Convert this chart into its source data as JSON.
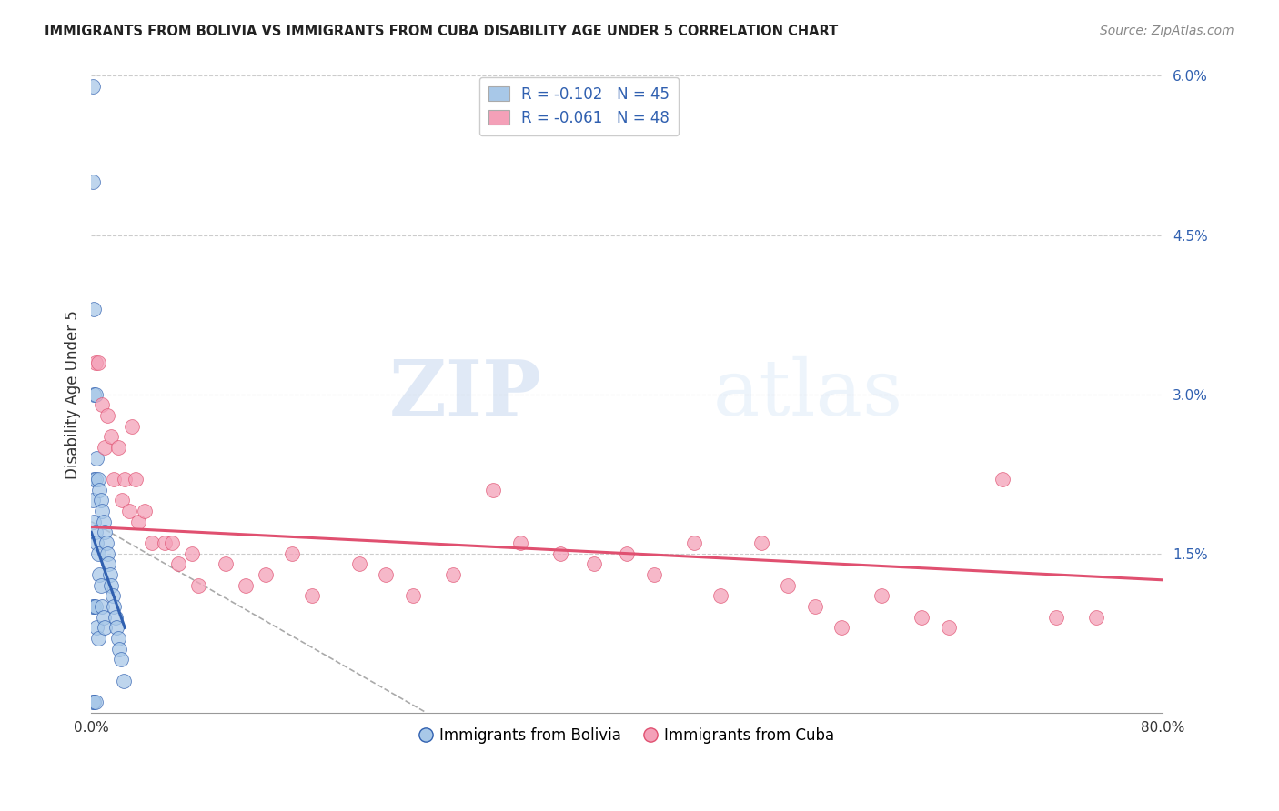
{
  "title": "IMMIGRANTS FROM BOLIVIA VS IMMIGRANTS FROM CUBA DISABILITY AGE UNDER 5 CORRELATION CHART",
  "source": "Source: ZipAtlas.com",
  "ylabel": "Disability Age Under 5",
  "xlim": [
    0,
    0.8
  ],
  "ylim": [
    0,
    0.06
  ],
  "yticks": [
    0,
    0.015,
    0.03,
    0.045,
    0.06
  ],
  "ytick_labels": [
    "",
    "1.5%",
    "3.0%",
    "4.5%",
    "6.0%"
  ],
  "xticks": [
    0,
    0.2,
    0.4,
    0.6,
    0.8
  ],
  "xtick_labels": [
    "0.0%",
    "",
    "",
    "",
    "80.0%"
  ],
  "bolivia_R": -0.102,
  "bolivia_N": 45,
  "cuba_R": -0.061,
  "cuba_N": 48,
  "bolivia_color": "#a8c8e8",
  "cuba_color": "#f4a0b8",
  "bolivia_line_color": "#3060b0",
  "cuba_line_color": "#e05070",
  "bolivia_x": [
    0.001,
    0.001,
    0.001,
    0.001,
    0.001,
    0.002,
    0.002,
    0.002,
    0.002,
    0.002,
    0.002,
    0.003,
    0.003,
    0.003,
    0.003,
    0.003,
    0.004,
    0.004,
    0.004,
    0.005,
    0.005,
    0.005,
    0.006,
    0.006,
    0.007,
    0.007,
    0.008,
    0.008,
    0.009,
    0.009,
    0.01,
    0.01,
    0.011,
    0.012,
    0.013,
    0.014,
    0.015,
    0.016,
    0.017,
    0.018,
    0.019,
    0.02,
    0.021,
    0.022,
    0.024
  ],
  "bolivia_y": [
    0.059,
    0.05,
    0.02,
    0.01,
    0.001,
    0.038,
    0.03,
    0.022,
    0.018,
    0.01,
    0.001,
    0.03,
    0.022,
    0.017,
    0.01,
    0.001,
    0.024,
    0.016,
    0.008,
    0.022,
    0.015,
    0.007,
    0.021,
    0.013,
    0.02,
    0.012,
    0.019,
    0.01,
    0.018,
    0.009,
    0.017,
    0.008,
    0.016,
    0.015,
    0.014,
    0.013,
    0.012,
    0.011,
    0.01,
    0.009,
    0.008,
    0.007,
    0.006,
    0.005,
    0.003
  ],
  "cuba_x": [
    0.003,
    0.005,
    0.008,
    0.01,
    0.012,
    0.015,
    0.017,
    0.02,
    0.023,
    0.025,
    0.028,
    0.03,
    0.033,
    0.035,
    0.04,
    0.045,
    0.055,
    0.06,
    0.065,
    0.075,
    0.08,
    0.1,
    0.115,
    0.13,
    0.15,
    0.165,
    0.2,
    0.22,
    0.24,
    0.27,
    0.3,
    0.32,
    0.35,
    0.375,
    0.4,
    0.42,
    0.45,
    0.47,
    0.5,
    0.52,
    0.54,
    0.56,
    0.59,
    0.62,
    0.64,
    0.68,
    0.72,
    0.75
  ],
  "cuba_y": [
    0.033,
    0.033,
    0.029,
    0.025,
    0.028,
    0.026,
    0.022,
    0.025,
    0.02,
    0.022,
    0.019,
    0.027,
    0.022,
    0.018,
    0.019,
    0.016,
    0.016,
    0.016,
    0.014,
    0.015,
    0.012,
    0.014,
    0.012,
    0.013,
    0.015,
    0.011,
    0.014,
    0.013,
    0.011,
    0.013,
    0.021,
    0.016,
    0.015,
    0.014,
    0.015,
    0.013,
    0.016,
    0.011,
    0.016,
    0.012,
    0.01,
    0.008,
    0.011,
    0.009,
    0.008,
    0.022,
    0.009,
    0.009
  ],
  "watermark_zip": "ZIP",
  "watermark_atlas": "atlas",
  "legend_bolivia": "Immigrants from Bolivia",
  "legend_cuba": "Immigrants from Cuba",
  "background_color": "#ffffff",
  "grid_color": "#cccccc",
  "bolivia_trend_x": [
    0.0,
    0.025
  ],
  "bolivia_trend_y": [
    0.017,
    0.008
  ],
  "cuba_trend_x": [
    0.0,
    0.8
  ],
  "cuba_trend_y": [
    0.0175,
    0.0125
  ]
}
